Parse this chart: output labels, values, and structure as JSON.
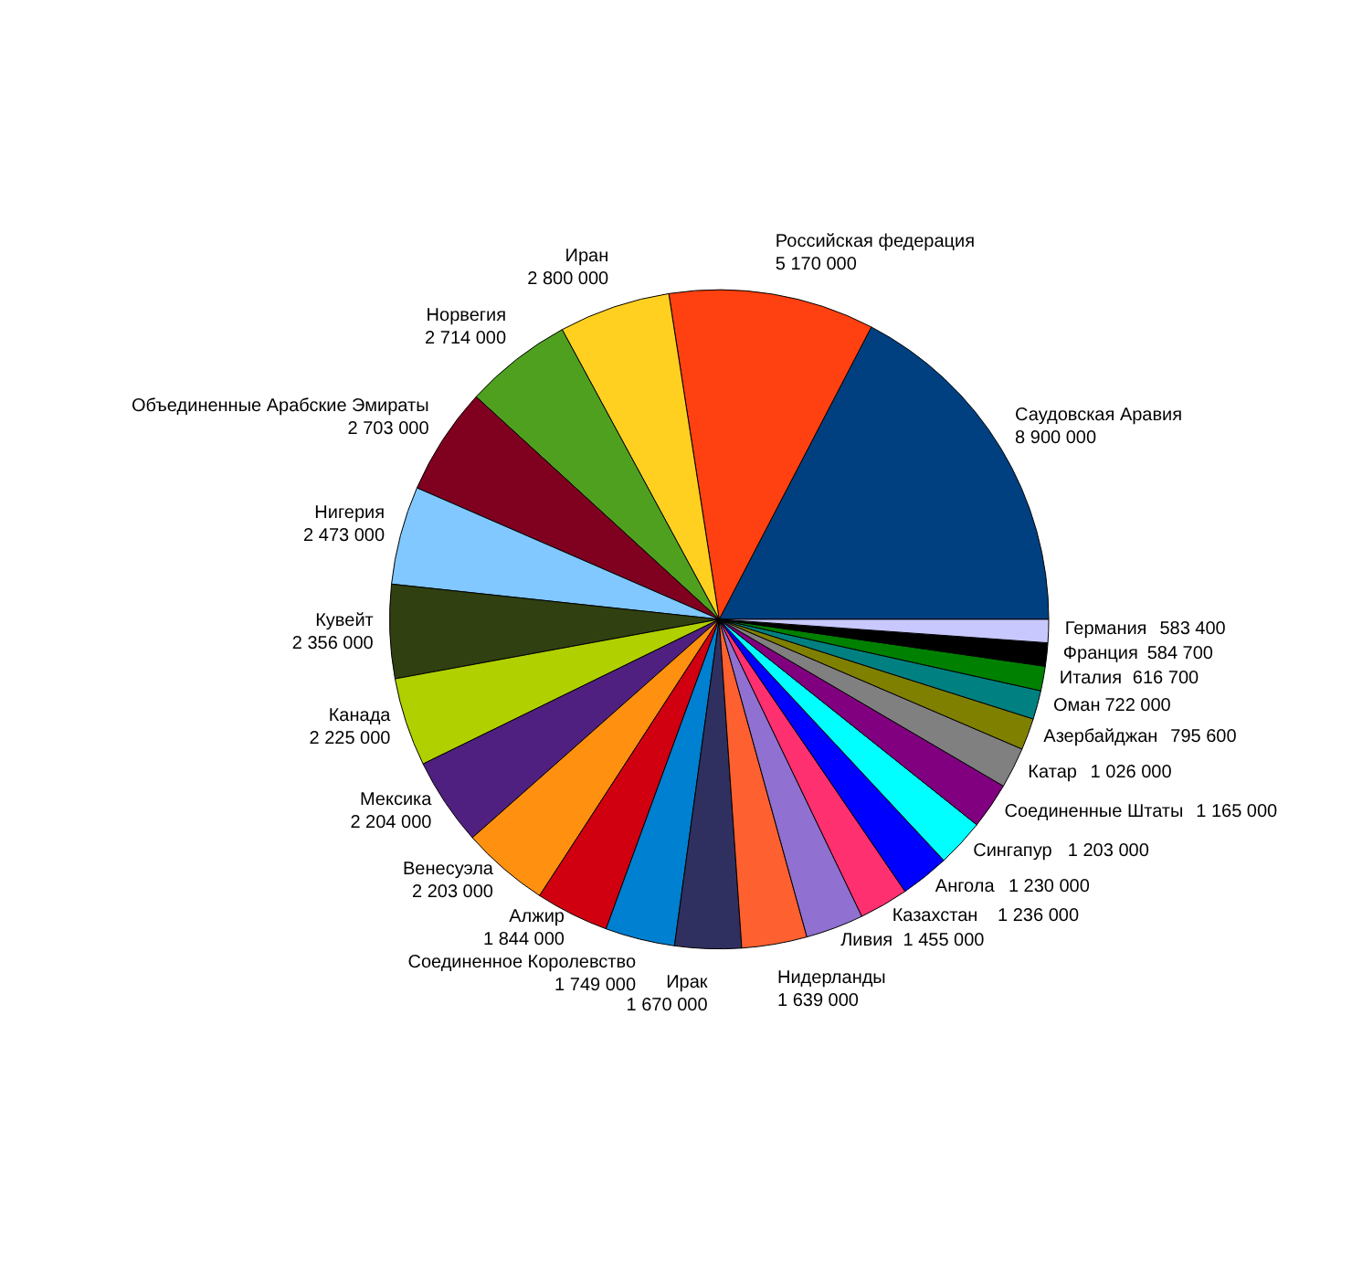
{
  "chart_data": {
    "type": "pie",
    "data_labels": true,
    "legend": false,
    "categories": [
      "Саудовская Аравия",
      "Российская федерация",
      "Иран",
      "Норвегия",
      "Объединенные Арабские Эмираты",
      "Нигерия",
      "Кувейт",
      "Канада",
      "Мексика",
      "Венесуэла",
      "Алжир",
      "Соединенное Королевство",
      "Ирак",
      "Нидерланды",
      "Ливия",
      "Казахстан",
      "Ангола",
      "Сингапур",
      "Соединенные Штаты",
      "Катар",
      "Азербайджан",
      "Оман",
      "Италия",
      "Франция",
      "Германия"
    ],
    "values": [
      8900000,
      5170000,
      2800000,
      2714000,
      2703000,
      2473000,
      2356000,
      2225000,
      2204000,
      2203000,
      1844000,
      1749000,
      1670000,
      1639000,
      1455000,
      1236000,
      1230000,
      1203000,
      1165000,
      1026000,
      795600,
      722000,
      616700,
      584700,
      583400
    ],
    "colors": [
      "#004080",
      "#ff4010",
      "#ffd020",
      "#50a020",
      "#800020",
      "#80c8ff",
      "#304010",
      "#b0d000",
      "#502080",
      "#ff9010",
      "#d00010",
      "#0080d0",
      "#303060",
      "#ff6030",
      "#9070d0",
      "#ff3070",
      "#0000ff",
      "#00ffff",
      "#800080",
      "#808080",
      "#808000",
      "#008080",
      "#008000",
      "#000000",
      "#c8c8ff"
    ]
  }
}
